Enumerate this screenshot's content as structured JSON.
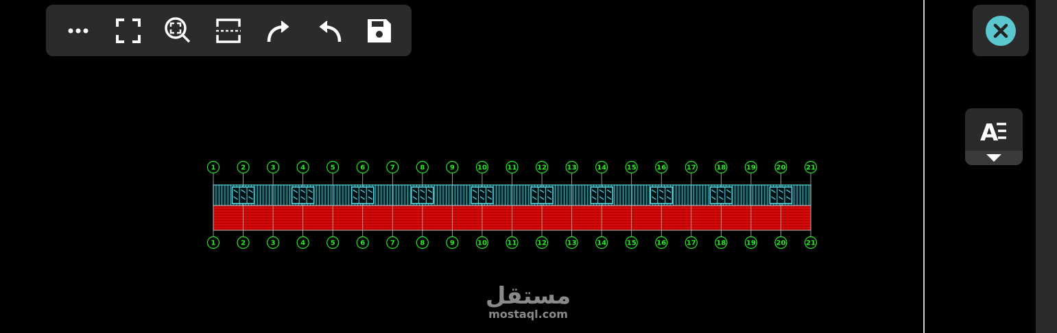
{
  "toolbar": {
    "buttons": [
      {
        "name": "more-icon"
      },
      {
        "name": "fullscreen-icon"
      },
      {
        "name": "zoom-extents-icon"
      },
      {
        "name": "section-icon"
      },
      {
        "name": "redo-icon"
      },
      {
        "name": "undo-icon"
      },
      {
        "name": "save-icon"
      }
    ]
  },
  "close_button": {
    "icon": "close-icon",
    "color": "#5bc8d0"
  },
  "text_style_button": {
    "icon": "text-style-icon",
    "dropdown": "caret-down-icon"
  },
  "drawing": {
    "grid_labels": [
      "1",
      "2",
      "3",
      "4",
      "5",
      "6",
      "7",
      "8",
      "9",
      "10",
      "11",
      "12",
      "13",
      "14",
      "15",
      "16",
      "17",
      "18",
      "19",
      "20",
      "21"
    ],
    "window_axes": [
      "2",
      "4",
      "6",
      "8",
      "10",
      "12",
      "14",
      "16",
      "18",
      "20"
    ],
    "colors": {
      "grid": "#22ee22",
      "glazing": "#55d8e0",
      "brick": "#c00000",
      "brick_lines": "#ff3030",
      "lines": "#bbbbbb"
    }
  },
  "watermark": {
    "arabic": "مستقل",
    "latin": "mostaql.com"
  }
}
